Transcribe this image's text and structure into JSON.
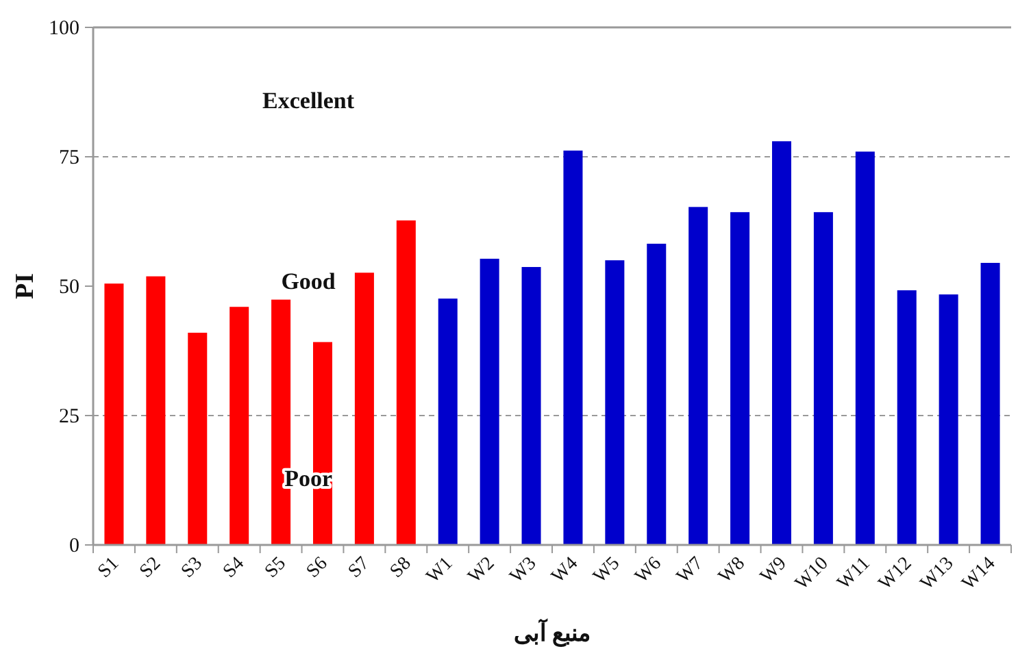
{
  "chart_data": {
    "type": "bar",
    "xlabel": "منبع آبی",
    "ylabel": "PI",
    "categories": [
      "S1",
      "S2",
      "S3",
      "S4",
      "S5",
      "S6",
      "S7",
      "S8",
      "W1",
      "W2",
      "W3",
      "W4",
      "W5",
      "W6",
      "W7",
      "W8",
      "W9",
      "W10",
      "W11",
      "W12",
      "W13",
      "W14"
    ],
    "values": [
      50.5,
      51.9,
      41,
      46,
      47.4,
      39.2,
      52.6,
      62.7,
      47.6,
      55.3,
      53.7,
      76.2,
      55,
      58.2,
      65.3,
      64.3,
      78,
      64.3,
      76,
      49.2,
      48.4,
      54.5
    ],
    "colors": [
      "#ff0000",
      "#ff0000",
      "#ff0000",
      "#ff0000",
      "#ff0000",
      "#ff0000",
      "#ff0000",
      "#ff0000",
      "#0000cc",
      "#0000cc",
      "#0000cc",
      "#0000cc",
      "#0000cc",
      "#0000cc",
      "#0000cc",
      "#0000cc",
      "#0000cc",
      "#0000cc",
      "#0000cc",
      "#0000cc",
      "#0000cc",
      "#0000cc"
    ],
    "ylim": [
      0,
      100
    ],
    "yticks": [
      0,
      25,
      50,
      75,
      100
    ],
    "grid": false,
    "ref_lines": [
      {
        "axis": "y",
        "value": 25,
        "line_style": "dashed",
        "color": "#999999"
      },
      {
        "axis": "y",
        "value": 75,
        "line_style": "dashed",
        "color": "#999999"
      }
    ],
    "annotations": [
      "Excellent",
      "Good",
      "Poor"
    ]
  }
}
